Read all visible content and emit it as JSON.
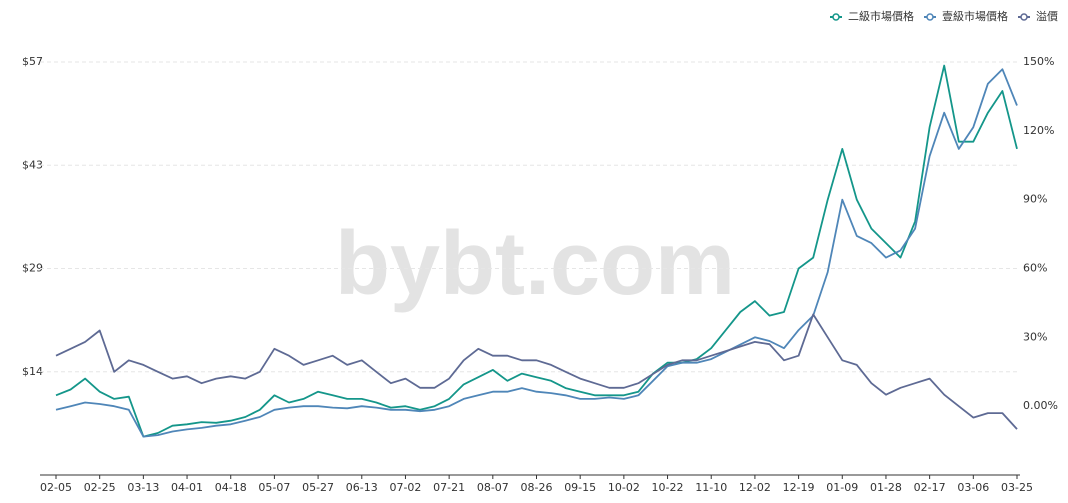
{
  "chart_data": {
    "type": "line",
    "watermark": "bybt.com",
    "categories": [
      "02-05",
      null,
      null,
      "02-25",
      null,
      null,
      "03-13",
      null,
      null,
      "04-01",
      null,
      null,
      "04-18",
      null,
      null,
      "05-07",
      null,
      null,
      "05-27",
      null,
      null,
      "06-13",
      null,
      null,
      "07-02",
      null,
      null,
      "07-21",
      null,
      null,
      "08-07",
      null,
      null,
      "08-26",
      null,
      null,
      "09-15",
      null,
      null,
      "10-02",
      null,
      null,
      "10-22",
      null,
      null,
      "11-10",
      null,
      null,
      "12-02",
      null,
      null,
      "12-19",
      null,
      null,
      "01-09",
      null,
      null,
      "01-28",
      null,
      null,
      "02-17",
      null,
      null,
      "03-06",
      null,
      null,
      "03-25"
    ],
    "series": [
      {
        "name": "二級市場價格",
        "color": "#14968a",
        "values": [
          11.0,
          11.8,
          13.3,
          11.5,
          10.5,
          10.8,
          5.3,
          5.8,
          6.8,
          7.0,
          7.3,
          7.2,
          7.5,
          8.0,
          9.0,
          11.0,
          10.0,
          10.5,
          11.5,
          11.0,
          10.5,
          10.5,
          10.0,
          9.3,
          9.5,
          9.0,
          9.5,
          10.5,
          12.5,
          13.5,
          14.5,
          13.0,
          14.0,
          13.5,
          13.0,
          12.0,
          11.5,
          11.0,
          11.0,
          11.0,
          11.5,
          14.0,
          15.5,
          15.5,
          16.0,
          17.5,
          20.0,
          22.5,
          24.0,
          22.0,
          22.5,
          28.5,
          30.0,
          38.0,
          45.0,
          38.0,
          34.0,
          32.0,
          30.0,
          35.0,
          48.0,
          56.5,
          46.0,
          46.0,
          50.0,
          53.0,
          45.0
        ]
      },
      {
        "name": "壹級市場價格",
        "color": "#4f86b8",
        "values": [
          9.0,
          9.5,
          10.0,
          9.8,
          9.5,
          9.0,
          5.3,
          5.5,
          6.0,
          6.3,
          6.5,
          6.8,
          7.0,
          7.5,
          8.0,
          9.0,
          9.3,
          9.5,
          9.5,
          9.3,
          9.2,
          9.5,
          9.3,
          9.0,
          9.0,
          8.8,
          9.0,
          9.5,
          10.5,
          11.0,
          11.5,
          11.5,
          12.0,
          11.5,
          11.3,
          11.0,
          10.5,
          10.5,
          10.7,
          10.5,
          11.0,
          13.0,
          15.0,
          15.5,
          15.5,
          16.0,
          17.0,
          18.0,
          19.0,
          18.5,
          17.5,
          20.0,
          22.0,
          28.0,
          38.0,
          33.0,
          32.0,
          30.0,
          31.0,
          34.0,
          44.0,
          50.0,
          45.0,
          48.0,
          54.0,
          56.0,
          51.0
        ]
      },
      {
        "name": "溢價",
        "color": "#5e6a94",
        "axis": "y2",
        "values": [
          22,
          25,
          28,
          33,
          15,
          20,
          18,
          15,
          12,
          13,
          10,
          12,
          13,
          12,
          15,
          25,
          22,
          18,
          20,
          22,
          18,
          20,
          15,
          10,
          12,
          8,
          8,
          12,
          20,
          25,
          22,
          22,
          20,
          20,
          18,
          15,
          12,
          10,
          8,
          8,
          10,
          14,
          18,
          20,
          20,
          22,
          24,
          26,
          28,
          27,
          20,
          22,
          40,
          30,
          20,
          18,
          10,
          5,
          8,
          10,
          12,
          5,
          0,
          -5,
          -3,
          -3,
          -10
        ]
      }
    ],
    "ylim": [
      0,
      57
    ],
    "yticks": [
      {
        "value": 14.25,
        "label": "$14"
      },
      {
        "value": 28.5,
        "label": "$29"
      },
      {
        "value": 42.75,
        "label": "$43"
      },
      {
        "value": 57,
        "label": "$57"
      }
    ],
    "y2lim": [
      -30,
      150
    ],
    "y2ticks": [
      {
        "value": 0,
        "label": "0.00%"
      },
      {
        "value": 30,
        "label": "30%"
      },
      {
        "value": 60,
        "label": "60%"
      },
      {
        "value": 90,
        "label": "90%"
      },
      {
        "value": 120,
        "label": "120%"
      },
      {
        "value": 150,
        "label": "150%"
      }
    ],
    "grid": true
  }
}
